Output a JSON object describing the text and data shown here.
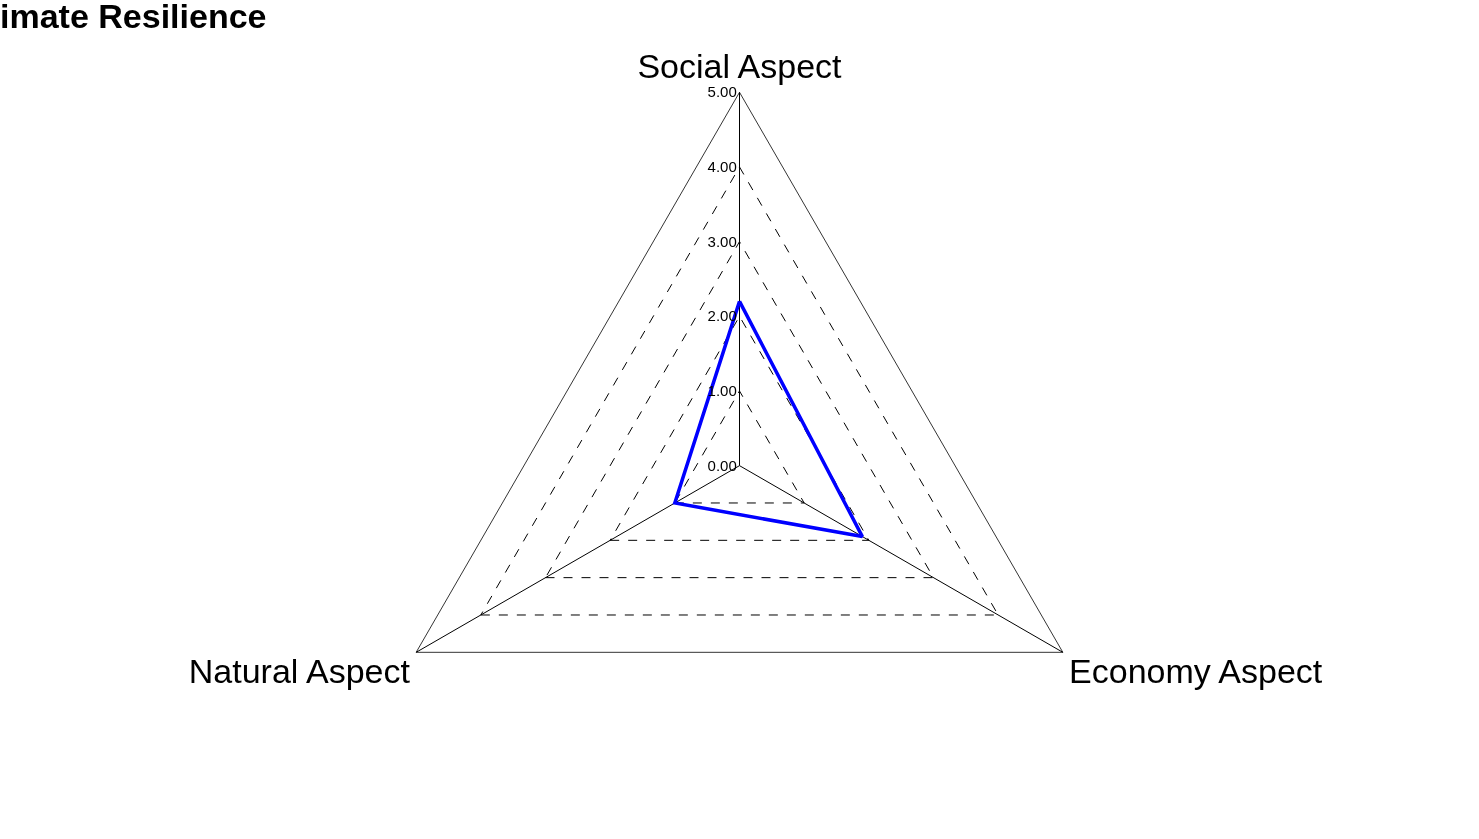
{
  "chart_data": {
    "type": "radar",
    "title": "imate Resilience",
    "categories": [
      "Social Aspect",
      "Economy Aspect",
      "Natural Aspect"
    ],
    "series": [
      {
        "color": "#0000ff",
        "values": [
          2.2,
          1.9,
          1.0
        ]
      }
    ],
    "ylim": [
      0,
      5
    ],
    "yticks": [
      {
        "value": 0,
        "label": "0.00"
      },
      {
        "value": 1,
        "label": "1.00"
      },
      {
        "value": 2,
        "label": "2.00"
      },
      {
        "value": 3,
        "label": "3.00"
      },
      {
        "value": 4,
        "label": "4.00"
      },
      {
        "value": 5,
        "label": "5.00"
      }
    ],
    "grid": true,
    "marker": "none",
    "line_style": "solid"
  }
}
